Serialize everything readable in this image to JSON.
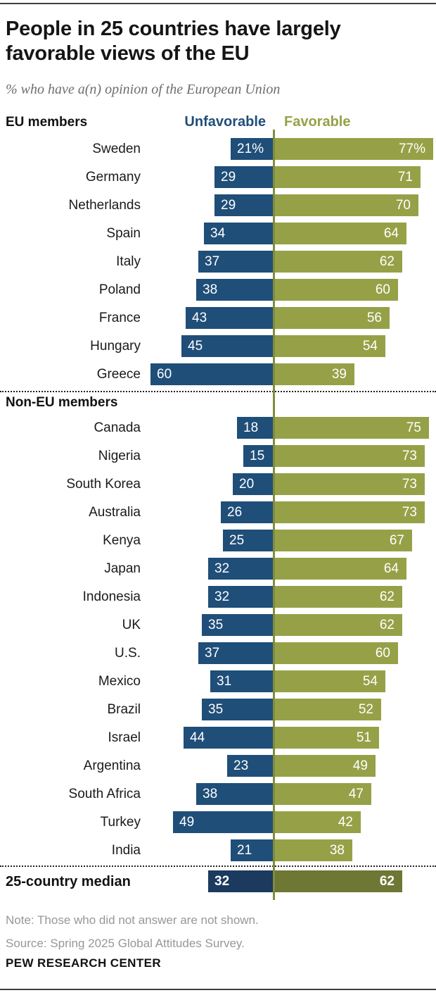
{
  "title": "People in 25 countries have largely favorable views of the EU",
  "subtitle": "% who have a(n) opinion of the European Union",
  "legend": {
    "unfavorable": "Unfavorable",
    "favorable": "Favorable"
  },
  "colors": {
    "unfavorable_bar": "#1f4e79",
    "favorable_bar": "#96A147",
    "median_unfavorable_bar": "#1B3A5E",
    "median_favorable_bar": "#6E7734",
    "axis_line": "#828C3C"
  },
  "chart_data": {
    "type": "bar",
    "orientation": "horizontal-diverging",
    "value_unit": "percent",
    "axis_zero_divider": true,
    "legend_position": "top",
    "series_names": [
      "Unfavorable",
      "Favorable"
    ],
    "sections": [
      {
        "label": "EU members",
        "rows": [
          {
            "country": "Sweden",
            "unfavorable": 21,
            "favorable": 77,
            "unfavorable_label": "21%",
            "favorable_label": "77%"
          },
          {
            "country": "Germany",
            "unfavorable": 29,
            "favorable": 71,
            "unfavorable_label": "29",
            "favorable_label": "71"
          },
          {
            "country": "Netherlands",
            "unfavorable": 29,
            "favorable": 70,
            "unfavorable_label": "29",
            "favorable_label": "70"
          },
          {
            "country": "Spain",
            "unfavorable": 34,
            "favorable": 64,
            "unfavorable_label": "34",
            "favorable_label": "64"
          },
          {
            "country": "Italy",
            "unfavorable": 37,
            "favorable": 62,
            "unfavorable_label": "37",
            "favorable_label": "62"
          },
          {
            "country": "Poland",
            "unfavorable": 38,
            "favorable": 60,
            "unfavorable_label": "38",
            "favorable_label": "60"
          },
          {
            "country": "France",
            "unfavorable": 43,
            "favorable": 56,
            "unfavorable_label": "43",
            "favorable_label": "56"
          },
          {
            "country": "Hungary",
            "unfavorable": 45,
            "favorable": 54,
            "unfavorable_label": "45",
            "favorable_label": "54"
          },
          {
            "country": "Greece",
            "unfavorable": 60,
            "favorable": 39,
            "unfavorable_label": "60",
            "favorable_label": "39"
          }
        ]
      },
      {
        "label": "Non-EU members",
        "rows": [
          {
            "country": "Canada",
            "unfavorable": 18,
            "favorable": 75,
            "unfavorable_label": "18",
            "favorable_label": "75"
          },
          {
            "country": "Nigeria",
            "unfavorable": 15,
            "favorable": 73,
            "unfavorable_label": "15",
            "favorable_label": "73"
          },
          {
            "country": "South Korea",
            "unfavorable": 20,
            "favorable": 73,
            "unfavorable_label": "20",
            "favorable_label": "73"
          },
          {
            "country": "Australia",
            "unfavorable": 26,
            "favorable": 73,
            "unfavorable_label": "26",
            "favorable_label": "73"
          },
          {
            "country": "Kenya",
            "unfavorable": 25,
            "favorable": 67,
            "unfavorable_label": "25",
            "favorable_label": "67"
          },
          {
            "country": "Japan",
            "unfavorable": 32,
            "favorable": 64,
            "unfavorable_label": "32",
            "favorable_label": "64"
          },
          {
            "country": "Indonesia",
            "unfavorable": 32,
            "favorable": 62,
            "unfavorable_label": "32",
            "favorable_label": "62"
          },
          {
            "country": "UK",
            "unfavorable": 35,
            "favorable": 62,
            "unfavorable_label": "35",
            "favorable_label": "62"
          },
          {
            "country": "U.S.",
            "unfavorable": 37,
            "favorable": 60,
            "unfavorable_label": "37",
            "favorable_label": "60"
          },
          {
            "country": "Mexico",
            "unfavorable": 31,
            "favorable": 54,
            "unfavorable_label": "31",
            "favorable_label": "54"
          },
          {
            "country": "Brazil",
            "unfavorable": 35,
            "favorable": 52,
            "unfavorable_label": "35",
            "favorable_label": "52"
          },
          {
            "country": "Israel",
            "unfavorable": 44,
            "favorable": 51,
            "unfavorable_label": "44",
            "favorable_label": "51"
          },
          {
            "country": "Argentina",
            "unfavorable": 23,
            "favorable": 49,
            "unfavorable_label": "23",
            "favorable_label": "49"
          },
          {
            "country": "South Africa",
            "unfavorable": 38,
            "favorable": 47,
            "unfavorable_label": "38",
            "favorable_label": "47"
          },
          {
            "country": "Turkey",
            "unfavorable": 49,
            "favorable": 42,
            "unfavorable_label": "49",
            "favorable_label": "42"
          },
          {
            "country": "India",
            "unfavorable": 21,
            "favorable": 38,
            "unfavorable_label": "21",
            "favorable_label": "38"
          }
        ]
      }
    ],
    "median": {
      "label": "25-country median",
      "unfavorable": 32,
      "favorable": 62,
      "unfavorable_label": "32",
      "favorable_label": "62"
    }
  },
  "note": "Note: Those who did not answer are not shown.",
  "source": "Source: Spring 2025 Global Attitudes Survey.",
  "footer": "PEW RESEARCH CENTER"
}
